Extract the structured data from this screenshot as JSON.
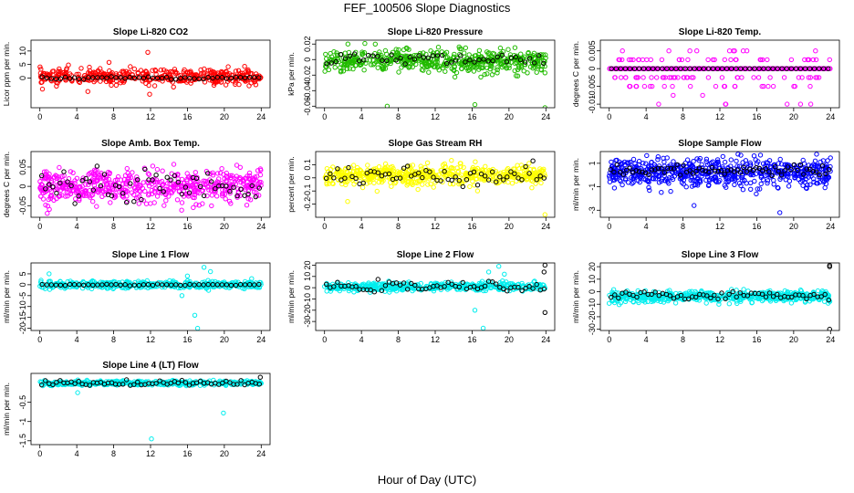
{
  "figure": {
    "title": "FEF_100506  Slope Diagnostics",
    "xlabel": "Hour of Day (UTC)"
  },
  "colors": {
    "red": "#ff0000",
    "green": "#22bb00",
    "magenta": "#ff00ff",
    "yellow": "#ffff00",
    "blue": "#0000ff",
    "cyan": "#00eeee",
    "black": "#000000"
  },
  "chart_data": [
    {
      "type": "scatter",
      "title": "Slope Li-820 CO2",
      "ylabel": "Licor ppm per min.",
      "xlabel": "",
      "xlim": [
        0,
        24
      ],
      "ylim": [
        -11,
        14
      ],
      "xticks": [
        0,
        4,
        8,
        12,
        16,
        20,
        24
      ],
      "yticks": [
        0,
        5,
        10
      ],
      "series": [
        {
          "name": "all",
          "color": "red",
          "center": 0.5,
          "spread": 2.2,
          "n": 420,
          "outliers": [
            [
              5.2,
              -5
            ],
            [
              11.9,
              -6
            ],
            [
              7.5,
              5.8
            ],
            [
              11.7,
              9.5
            ],
            [
              3.1,
              4.8
            ],
            [
              9.8,
              4.2
            ],
            [
              1.8,
              -3
            ]
          ]
        },
        {
          "name": "mean",
          "color": "black",
          "center": 0,
          "spread": 0.25,
          "n": 48
        }
      ]
    },
    {
      "type": "scatter",
      "title": "Slope Li-820 Pressure",
      "ylabel": "kPa per min.",
      "xlabel": "",
      "xlim": [
        0,
        24
      ],
      "ylim": [
        -0.062,
        0.025
      ],
      "xticks": [
        0,
        4,
        8,
        12,
        16,
        20,
        24
      ],
      "yticks": [
        0.02,
        0,
        -0.02,
        -0.04,
        -0.06
      ],
      "series": [
        {
          "name": "all",
          "color": "green",
          "center": -0.002,
          "spread": 0.012,
          "n": 520,
          "outliers": [
            [
              6.8,
              -0.06
            ],
            [
              16.3,
              -0.058
            ],
            [
              23.9,
              -0.062
            ],
            [
              5.5,
              0.02
            ]
          ]
        },
        {
          "name": "mean",
          "color": "black",
          "center": 0,
          "spread": 0.005,
          "n": 48
        }
      ]
    },
    {
      "type": "scatter",
      "title": "Slope Li-820 Temp.",
      "ylabel": "degrees C per min.",
      "xlabel": "",
      "xlim": [
        0,
        24
      ],
      "ylim": [
        -0.011,
        0.008
      ],
      "xticks": [
        0,
        4,
        8,
        12,
        16,
        20,
        24
      ],
      "yticks": [
        0.005,
        0,
        -0.005,
        -0.01
      ],
      "series": [
        {
          "name": "all",
          "color": "magenta",
          "levels": [
            0.005,
            0.0025,
            0,
            -0.0025,
            -0.005,
            -0.0075,
            -0.01
          ],
          "weights": [
            4,
            10,
            70,
            10,
            4,
            1,
            1
          ],
          "n": 360
        },
        {
          "name": "mean",
          "color": "black",
          "center": 0,
          "spread": 0,
          "n": 48
        }
      ]
    },
    {
      "type": "scatter",
      "title": "Slope Amb. Box Temp.",
      "ylabel": "degrees C per min.",
      "xlabel": "",
      "xlim": [
        0,
        24
      ],
      "ylim": [
        -0.08,
        0.09
      ],
      "xticks": [
        0,
        4,
        8,
        12,
        16,
        20,
        24
      ],
      "yticks": [
        0.05,
        0,
        -0.05
      ],
      "series": [
        {
          "name": "all",
          "color": "magenta",
          "center": 0,
          "spread": 0.035,
          "n": 560
        },
        {
          "name": "mean",
          "color": "black",
          "center": 0,
          "spread": 0.02,
          "n": 60
        }
      ]
    },
    {
      "type": "scatter",
      "title": "Slope Gas Stream RH",
      "ylabel": "percent per min.",
      "xlabel": "",
      "xlim": [
        0,
        24
      ],
      "ylim": [
        -0.3,
        0.2
      ],
      "xticks": [
        0,
        4,
        8,
        12,
        16,
        20,
        24
      ],
      "yticks": [
        0.1,
        0,
        -0.1,
        -0.2
      ],
      "series": [
        {
          "name": "all",
          "color": "yellow",
          "center": 0.02,
          "spread": 0.06,
          "n": 560,
          "outliers": [
            [
              2.5,
              -0.18
            ],
            [
              23.9,
              -0.28
            ]
          ]
        },
        {
          "name": "mean",
          "color": "black",
          "center": 0.02,
          "spread": 0.04,
          "n": 60
        }
      ]
    },
    {
      "type": "scatter",
      "title": "Slope Sample Flow",
      "ylabel": "ml/min per min.",
      "xlabel": "",
      "xlim": [
        0,
        24
      ],
      "ylim": [
        -3.6,
        2.0
      ],
      "xticks": [
        0,
        4,
        8,
        12,
        16,
        20,
        24
      ],
      "yticks": [
        1,
        -1,
        -3
      ],
      "series": [
        {
          "name": "all",
          "color": "blue",
          "center": 0.2,
          "spread": 1.0,
          "n": 620,
          "outliers": [
            [
              9.2,
              -2.6
            ],
            [
              18.5,
              -3.2
            ],
            [
              16.4,
              1.7
            ]
          ]
        },
        {
          "name": "mean",
          "color": "black",
          "center": 0.4,
          "spread": 0.2,
          "n": 70
        }
      ]
    },
    {
      "type": "scatter",
      "title": "Slope Line 1 Flow",
      "ylabel": "ml/min per min.",
      "xlabel": "",
      "xlim": [
        0,
        24
      ],
      "ylim": [
        -21,
        10
      ],
      "xticks": [
        0,
        4,
        8,
        12,
        16,
        20,
        24
      ],
      "yticks": [
        5,
        0,
        -5,
        -10,
        -15,
        -20
      ],
      "series": [
        {
          "name": "all",
          "color": "cyan",
          "center": 0,
          "spread": 1.4,
          "n": 420,
          "outliers": [
            [
              16.8,
              -14
            ],
            [
              17.1,
              -20
            ],
            [
              17.8,
              8
            ],
            [
              18.5,
              6
            ],
            [
              16,
              4
            ],
            [
              15.4,
              -5
            ],
            [
              1,
              5
            ]
          ]
        },
        {
          "name": "mean",
          "color": "black",
          "center": 0,
          "spread": 0.15,
          "n": 48
        }
      ]
    },
    {
      "type": "scatter",
      "title": "Slope Line 2 Flow",
      "ylabel": "ml/min per min.",
      "xlabel": "",
      "xlim": [
        0,
        24
      ],
      "ylim": [
        -38,
        22
      ],
      "xticks": [
        0,
        4,
        8,
        12,
        16,
        20,
        24
      ],
      "yticks": [
        20,
        10,
        0,
        -10,
        -20,
        -30
      ],
      "series": [
        {
          "name": "all",
          "color": "cyan",
          "center": 1,
          "spread": 3,
          "n": 460,
          "outliers": [
            [
              16.3,
              -20
            ],
            [
              17.2,
              -36
            ],
            [
              17.8,
              14
            ],
            [
              18.9,
              19
            ],
            [
              19.5,
              12
            ]
          ]
        },
        {
          "name": "mean",
          "color": "black",
          "center": 1,
          "spread": 2,
          "n": 60,
          "outliers": [
            [
              23.9,
              20
            ],
            [
              23.9,
              -22
            ],
            [
              23.8,
              14
            ]
          ]
        }
      ]
    },
    {
      "type": "scatter",
      "title": "Slope Line 3 Flow",
      "ylabel": "ml/min per min.",
      "xlabel": "",
      "xlim": [
        0,
        24
      ],
      "ylim": [
        -31,
        23
      ],
      "xticks": [
        0,
        4,
        8,
        12,
        16,
        20,
        24
      ],
      "yticks": [
        20,
        10,
        0,
        -10,
        -20,
        -30
      ],
      "series": [
        {
          "name": "all",
          "color": "cyan",
          "center": -4,
          "spread": 3.5,
          "n": 560
        },
        {
          "name": "mean",
          "color": "black",
          "center": -3,
          "spread": 1.5,
          "n": 60,
          "outliers": [
            [
              23.9,
              20
            ],
            [
              23.9,
              21
            ],
            [
              23.9,
              -30
            ]
          ]
        }
      ]
    },
    {
      "type": "scatter",
      "title": "Slope Line 4 (LT) Flow",
      "ylabel": "ml/min per min.",
      "xlabel": "",
      "xlim": [
        0,
        24
      ],
      "ylim": [
        -1.6,
        0.25
      ],
      "xticks": [
        0,
        4,
        8,
        12,
        16,
        20,
        24
      ],
      "yticks": [
        -0.5,
        -1,
        -1.5
      ],
      "series": [
        {
          "name": "all",
          "color": "cyan",
          "center": 0,
          "spread": 0.05,
          "n": 420,
          "outliers": [
            [
              12.1,
              -1.45
            ],
            [
              19.9,
              -0.78
            ],
            [
              4.1,
              -0.25
            ]
          ]
        },
        {
          "name": "mean",
          "color": "black",
          "center": 0,
          "spread": 0.035,
          "n": 60,
          "outliers": [
            [
              23.9,
              0.15
            ]
          ]
        }
      ]
    }
  ]
}
